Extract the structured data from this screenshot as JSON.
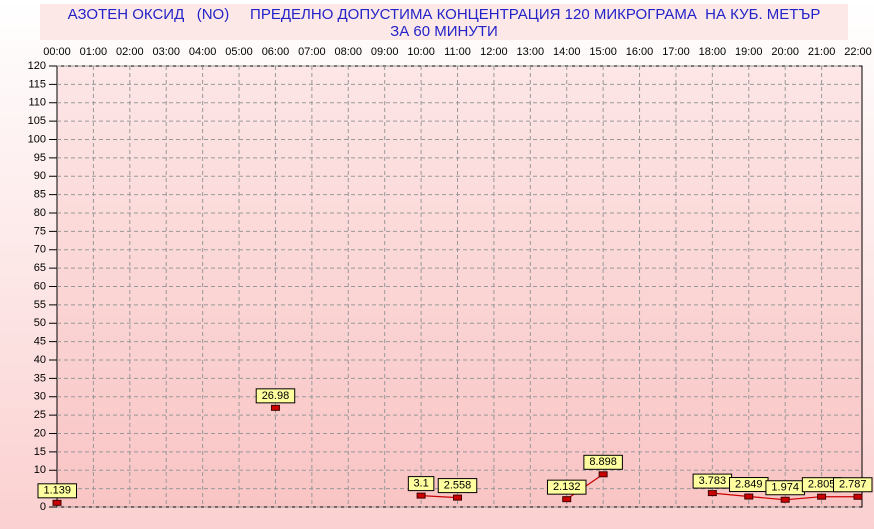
{
  "chart_data": {
    "type": "line",
    "title": "АЗОТЕН ОКСИД   (NO)     ПРЕДЕЛНО ДОПУСТИМА КОНЦЕНТРАЦИЯ 120 МИКРОГРАМА  НА КУБ. МЕТЪР",
    "subtitle": "ЗА 60 МИНУТИ",
    "categories": [
      "00:00",
      "01:00",
      "02:00",
      "03:00",
      "04:00",
      "05:00",
      "06:00",
      "07:00",
      "08:00",
      "09:00",
      "10:00",
      "11:00",
      "12:00",
      "13:00",
      "14:00",
      "15:00",
      "16:00",
      "17:00",
      "18:00",
      "19:00",
      "20:00",
      "21:00",
      "22:00"
    ],
    "series": [
      {
        "name": "NO",
        "color": "#cc0000",
        "values": [
          1.139,
          null,
          null,
          null,
          null,
          null,
          26.98,
          null,
          null,
          null,
          3.1,
          2.558,
          null,
          null,
          2.132,
          8.898,
          null,
          null,
          3.783,
          2.849,
          1.974,
          2.805,
          2.787
        ]
      }
    ],
    "ylim": [
      0,
      120
    ],
    "yticks": [
      0,
      5,
      10,
      15,
      20,
      25,
      30,
      35,
      40,
      45,
      50,
      55,
      60,
      65,
      70,
      75,
      80,
      85,
      90,
      95,
      100,
      105,
      110,
      115,
      120
    ],
    "grid": true
  }
}
